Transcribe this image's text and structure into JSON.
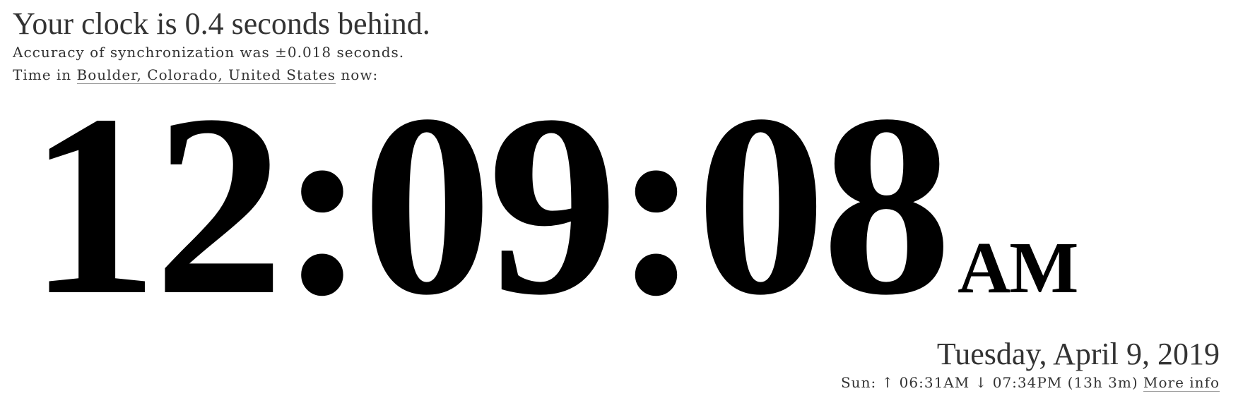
{
  "status": {
    "message": "Your clock is 0.4 seconds behind.",
    "accuracy": "Accuracy of synchronization was ±0.018 seconds."
  },
  "location": {
    "prefix": "Time in",
    "place": "Boulder, Colorado, United States",
    "suffix": "now:"
  },
  "clock": {
    "time": "12:09:08",
    "ampm": "AM"
  },
  "date": "Tuesday, April 9, 2019",
  "sun": {
    "label": "Sun:",
    "sunrise_icon": "↑",
    "sunrise": "06:31AM",
    "sunset_icon": "↓",
    "sunset": "07:34PM",
    "day_length": "(13h 3m)",
    "more_info": "More info"
  }
}
